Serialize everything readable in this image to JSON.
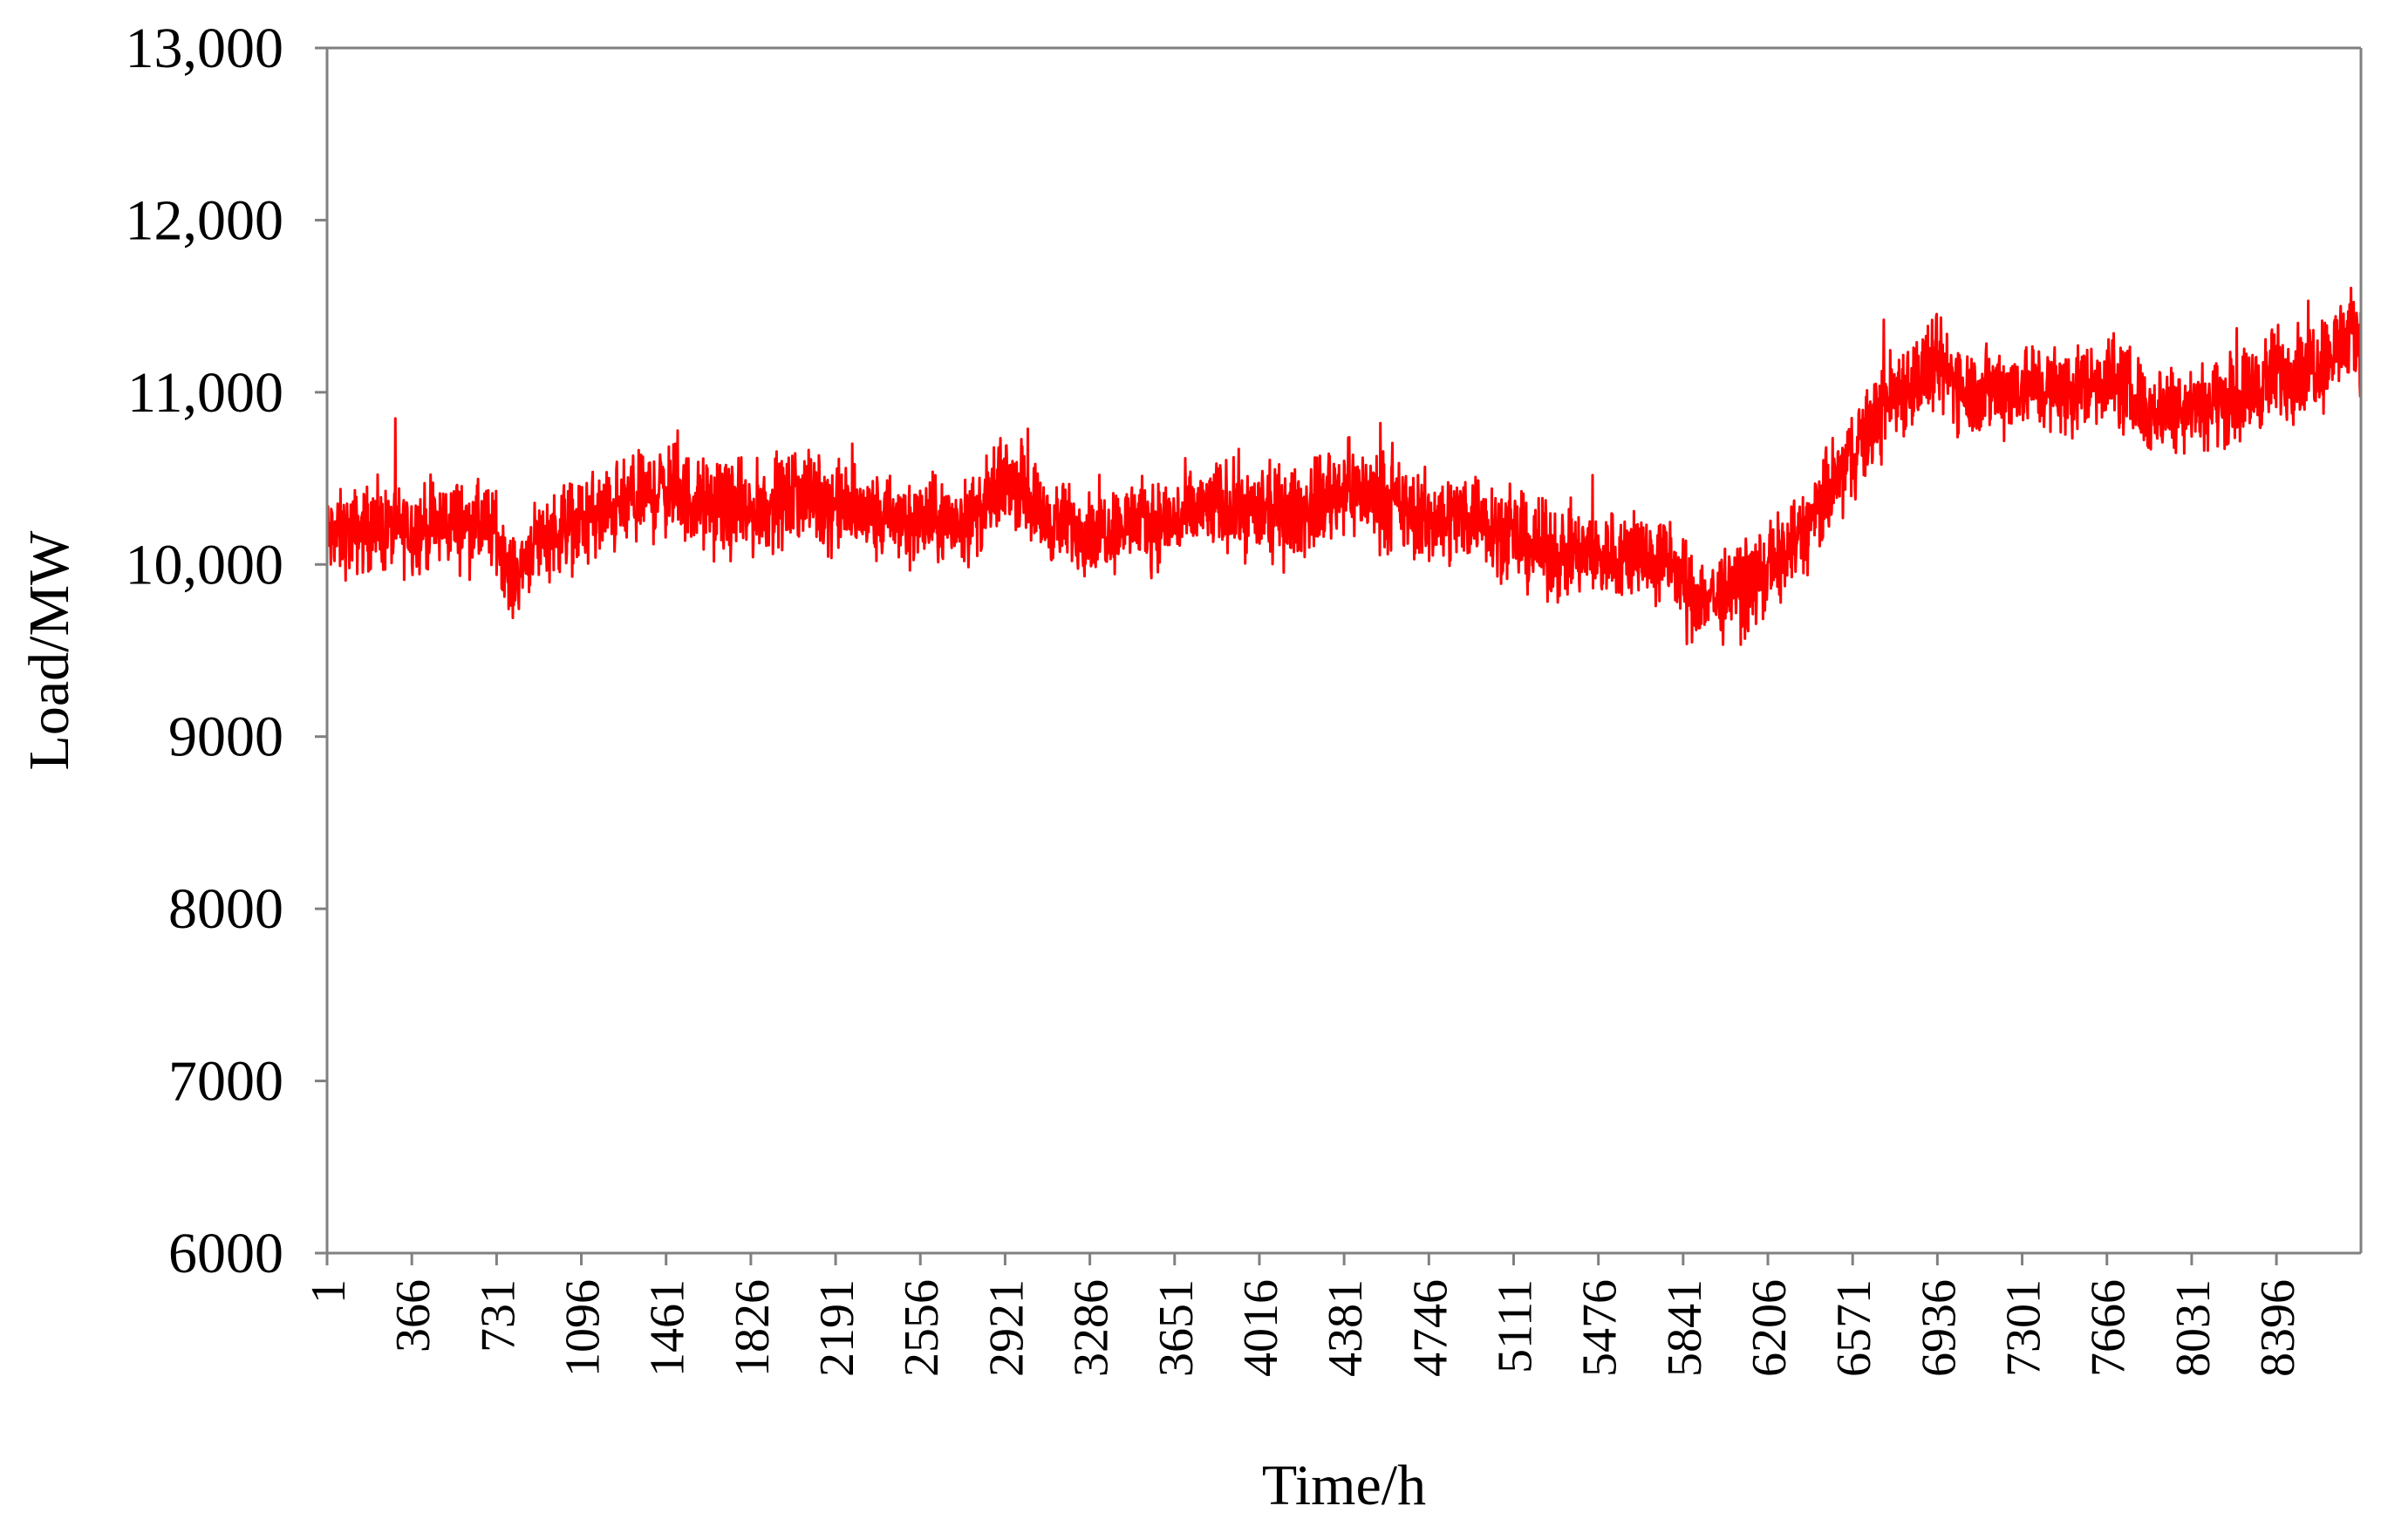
{
  "chart_data": {
    "type": "line",
    "title": "",
    "xlabel": "Time/h",
    "ylabel": "Load/MW",
    "ylim": [
      6000,
      13000
    ],
    "xlim": [
      1,
      8760
    ],
    "yticks": [
      6000,
      7000,
      8000,
      9000,
      10000,
      11000,
      12000,
      13000
    ],
    "ytick_labels": [
      "6000",
      "7000",
      "8000",
      "9000",
      "10,000",
      "11,000",
      "12,000",
      "13,000"
    ],
    "xticks": [
      1,
      366,
      731,
      1096,
      1461,
      1826,
      2191,
      2556,
      2921,
      3286,
      3651,
      4016,
      4381,
      4746,
      5111,
      5476,
      5841,
      6206,
      6571,
      6936,
      7301,
      7666,
      8031,
      8396
    ],
    "xtick_labels": [
      "1",
      "366",
      "731",
      "1096",
      "1461",
      "1826",
      "2191",
      "2556",
      "2921",
      "3286",
      "3651",
      "4016",
      "4381",
      "4746",
      "5111",
      "5476",
      "5841",
      "6206",
      "6571",
      "6936",
      "7301",
      "7666",
      "8031",
      "8396"
    ],
    "grid": false,
    "legend": "none",
    "series": [
      {
        "color": "#ff0000",
        "x": [
          1,
          150,
          366,
          550,
          731,
          800,
          900,
          1096,
          1300,
          1461,
          1600,
          1826,
          2050,
          2191,
          2400,
          2556,
          2750,
          2850,
          2921,
          3000,
          3100,
          3286,
          3500,
          3651,
          3850,
          4016,
          4200,
          4381,
          4500,
          4746,
          4950,
          5111,
          5300,
          5476,
          5650,
          5800,
          5841,
          6000,
          6206,
          6400,
          6571,
          6750,
          6936,
          7100,
          7301,
          7500,
          7666,
          7850,
          8031,
          8200,
          8396,
          8600,
          8760
        ],
        "y": [
          10150,
          10200,
          10200,
          10250,
          10200,
          9900,
          10150,
          10250,
          10350,
          10450,
          10350,
          10300,
          10400,
          10350,
          10250,
          10250,
          10250,
          10350,
          10500,
          10450,
          10250,
          10200,
          10250,
          10250,
          10350,
          10300,
          10300,
          10450,
          10400,
          10250,
          10300,
          10150,
          10050,
          10050,
          10050,
          10000,
          9850,
          9800,
          9950,
          10250,
          10650,
          11000,
          11150,
          11000,
          11050,
          11000,
          11100,
          10900,
          10950,
          10950,
          11100,
          11200,
          11350
        ],
        "spread": [
          400,
          400,
          400,
          400,
          380,
          350,
          380,
          420,
          420,
          450,
          420,
          420,
          420,
          420,
          420,
          400,
          400,
          400,
          420,
          400,
          380,
          380,
          400,
          400,
          420,
          420,
          420,
          420,
          420,
          420,
          420,
          420,
          420,
          420,
          420,
          420,
          420,
          420,
          420,
          420,
          420,
          450,
          450,
          420,
          420,
          420,
          420,
          420,
          420,
          420,
          450,
          450,
          450
        ]
      }
    ]
  }
}
